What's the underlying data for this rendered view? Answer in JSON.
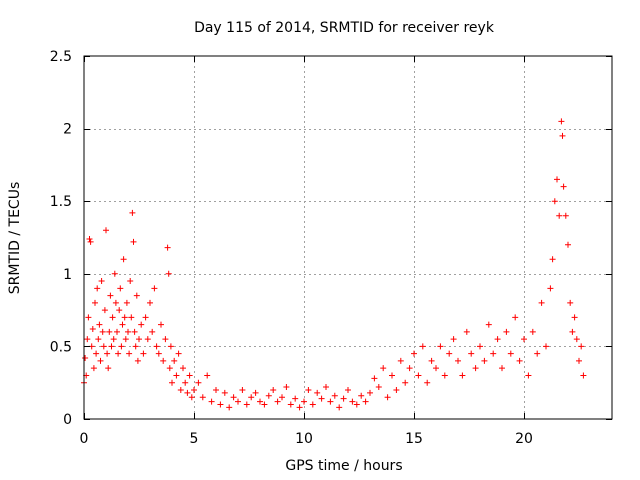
{
  "chart_data": {
    "type": "scatter",
    "title": "Day 115 of 2014, SRMTID for receiver reyk",
    "xlabel": "GPS time / hours",
    "ylabel": "SRMTID / TECUs",
    "xlim": [
      0,
      24
    ],
    "ylim": [
      0,
      2.5
    ],
    "xticks": [
      0,
      5,
      10,
      15,
      20
    ],
    "yticks": [
      0,
      0.5,
      1,
      1.5,
      2,
      2.5
    ],
    "xtick_labels": [
      "0",
      "5",
      "10",
      "15",
      "20"
    ],
    "ytick_labels": [
      "0",
      "0.5",
      "1",
      "1.5",
      "2",
      "2.5"
    ],
    "grid": true,
    "marker": "+",
    "color": "#ff0000",
    "series": [
      {
        "name": "reyk",
        "points": [
          [
            0.0,
            0.25
          ],
          [
            0.05,
            0.42
          ],
          [
            0.1,
            0.3
          ],
          [
            0.15,
            0.55
          ],
          [
            0.2,
            0.7
          ],
          [
            0.25,
            1.24
          ],
          [
            0.3,
            1.22
          ],
          [
            0.35,
            0.5
          ],
          [
            0.4,
            0.62
          ],
          [
            0.45,
            0.35
          ],
          [
            0.5,
            0.8
          ],
          [
            0.55,
            0.45
          ],
          [
            0.6,
            0.9
          ],
          [
            0.65,
            0.55
          ],
          [
            0.7,
            0.65
          ],
          [
            0.75,
            0.4
          ],
          [
            0.8,
            0.95
          ],
          [
            0.85,
            0.6
          ],
          [
            0.9,
            0.5
          ],
          [
            0.95,
            0.75
          ],
          [
            1.0,
            1.3
          ],
          [
            1.05,
            0.45
          ],
          [
            1.1,
            0.35
          ],
          [
            1.15,
            0.6
          ],
          [
            1.2,
            0.85
          ],
          [
            1.25,
            0.5
          ],
          [
            1.3,
            0.7
          ],
          [
            1.35,
            0.55
          ],
          [
            1.4,
            1.0
          ],
          [
            1.45,
            0.8
          ],
          [
            1.5,
            0.6
          ],
          [
            1.55,
            0.45
          ],
          [
            1.6,
            0.75
          ],
          [
            1.65,
            0.9
          ],
          [
            1.7,
            0.5
          ],
          [
            1.75,
            0.65
          ],
          [
            1.8,
            1.1
          ],
          [
            1.85,
            0.7
          ],
          [
            1.9,
            0.55
          ],
          [
            1.95,
            0.8
          ],
          [
            2.0,
            0.6
          ],
          [
            2.05,
            0.45
          ],
          [
            2.1,
            0.95
          ],
          [
            2.15,
            0.7
          ],
          [
            2.2,
            1.42
          ],
          [
            2.25,
            1.22
          ],
          [
            2.3,
            0.6
          ],
          [
            2.35,
            0.5
          ],
          [
            2.4,
            0.85
          ],
          [
            2.45,
            0.4
          ],
          [
            2.5,
            0.55
          ],
          [
            2.6,
            0.65
          ],
          [
            2.7,
            0.45
          ],
          [
            2.8,
            0.7
          ],
          [
            2.9,
            0.55
          ],
          [
            3.0,
            0.8
          ],
          [
            3.1,
            0.6
          ],
          [
            3.2,
            0.9
          ],
          [
            3.3,
            0.5
          ],
          [
            3.4,
            0.45
          ],
          [
            3.5,
            0.65
          ],
          [
            3.6,
            0.4
          ],
          [
            3.7,
            0.55
          ],
          [
            3.8,
            1.18
          ],
          [
            3.85,
            1.0
          ],
          [
            3.9,
            0.35
          ],
          [
            3.95,
            0.5
          ],
          [
            4.0,
            0.25
          ],
          [
            4.1,
            0.4
          ],
          [
            4.2,
            0.3
          ],
          [
            4.3,
            0.45
          ],
          [
            4.4,
            0.2
          ],
          [
            4.5,
            0.35
          ],
          [
            4.6,
            0.25
          ],
          [
            4.7,
            0.18
          ],
          [
            4.8,
            0.3
          ],
          [
            4.9,
            0.15
          ],
          [
            5.0,
            0.2
          ],
          [
            5.2,
            0.25
          ],
          [
            5.4,
            0.15
          ],
          [
            5.6,
            0.3
          ],
          [
            5.8,
            0.12
          ],
          [
            6.0,
            0.2
          ],
          [
            6.2,
            0.1
          ],
          [
            6.4,
            0.18
          ],
          [
            6.6,
            0.08
          ],
          [
            6.8,
            0.15
          ],
          [
            7.0,
            0.12
          ],
          [
            7.2,
            0.2
          ],
          [
            7.4,
            0.1
          ],
          [
            7.6,
            0.15
          ],
          [
            7.8,
            0.18
          ],
          [
            8.0,
            0.12
          ],
          [
            8.2,
            0.1
          ],
          [
            8.4,
            0.16
          ],
          [
            8.6,
            0.2
          ],
          [
            8.8,
            0.12
          ],
          [
            9.0,
            0.15
          ],
          [
            9.2,
            0.22
          ],
          [
            9.4,
            0.1
          ],
          [
            9.6,
            0.14
          ],
          [
            9.8,
            0.08
          ],
          [
            10.0,
            0.12
          ],
          [
            10.2,
            0.2
          ],
          [
            10.4,
            0.1
          ],
          [
            10.6,
            0.18
          ],
          [
            10.8,
            0.14
          ],
          [
            11.0,
            0.22
          ],
          [
            11.2,
            0.12
          ],
          [
            11.4,
            0.16
          ],
          [
            11.6,
            0.08
          ],
          [
            11.8,
            0.14
          ],
          [
            12.0,
            0.2
          ],
          [
            12.2,
            0.12
          ],
          [
            12.4,
            0.1
          ],
          [
            12.6,
            0.16
          ],
          [
            12.8,
            0.12
          ],
          [
            13.0,
            0.18
          ],
          [
            13.2,
            0.28
          ],
          [
            13.4,
            0.22
          ],
          [
            13.6,
            0.35
          ],
          [
            13.8,
            0.15
          ],
          [
            14.0,
            0.3
          ],
          [
            14.2,
            0.2
          ],
          [
            14.4,
            0.4
          ],
          [
            14.6,
            0.25
          ],
          [
            14.8,
            0.35
          ],
          [
            15.0,
            0.45
          ],
          [
            15.2,
            0.3
          ],
          [
            15.4,
            0.5
          ],
          [
            15.6,
            0.25
          ],
          [
            15.8,
            0.4
          ],
          [
            16.0,
            0.35
          ],
          [
            16.2,
            0.5
          ],
          [
            16.4,
            0.3
          ],
          [
            16.6,
            0.45
          ],
          [
            16.8,
            0.55
          ],
          [
            17.0,
            0.4
          ],
          [
            17.2,
            0.3
          ],
          [
            17.4,
            0.6
          ],
          [
            17.6,
            0.45
          ],
          [
            17.8,
            0.35
          ],
          [
            18.0,
            0.5
          ],
          [
            18.2,
            0.4
          ],
          [
            18.4,
            0.65
          ],
          [
            18.6,
            0.45
          ],
          [
            18.8,
            0.55
          ],
          [
            19.0,
            0.35
          ],
          [
            19.2,
            0.6
          ],
          [
            19.4,
            0.45
          ],
          [
            19.6,
            0.7
          ],
          [
            19.8,
            0.4
          ],
          [
            20.0,
            0.55
          ],
          [
            20.2,
            0.3
          ],
          [
            20.4,
            0.6
          ],
          [
            20.6,
            0.45
          ],
          [
            20.8,
            0.8
          ],
          [
            21.0,
            0.5
          ],
          [
            21.2,
            0.9
          ],
          [
            21.3,
            1.1
          ],
          [
            21.4,
            1.5
          ],
          [
            21.5,
            1.65
          ],
          [
            21.6,
            1.4
          ],
          [
            21.7,
            2.05
          ],
          [
            21.75,
            1.95
          ],
          [
            21.8,
            1.6
          ],
          [
            21.9,
            1.4
          ],
          [
            22.0,
            1.2
          ],
          [
            22.1,
            0.8
          ],
          [
            22.2,
            0.6
          ],
          [
            22.3,
            0.7
          ],
          [
            22.4,
            0.55
          ],
          [
            22.5,
            0.4
          ],
          [
            22.6,
            0.5
          ],
          [
            22.7,
            0.3
          ]
        ]
      }
    ]
  }
}
